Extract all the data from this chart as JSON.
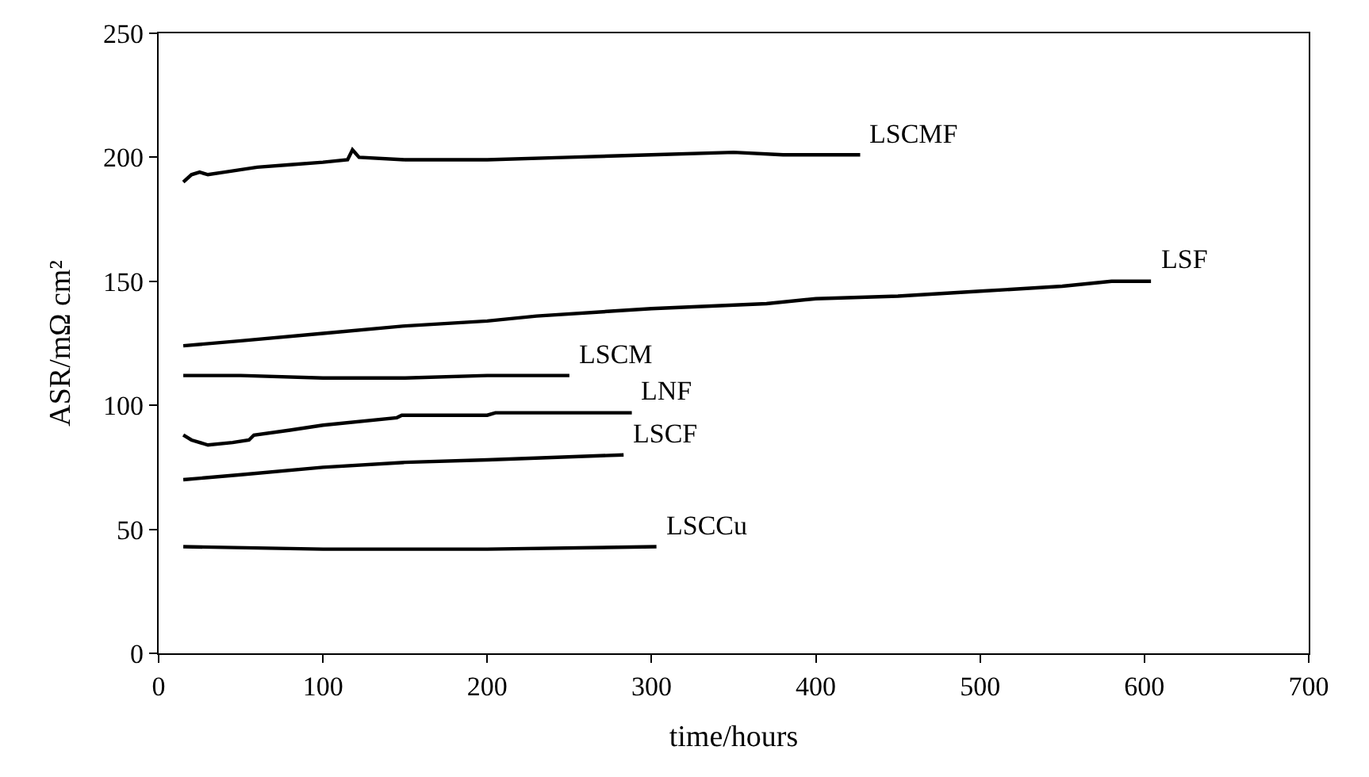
{
  "chart_data": {
    "type": "line",
    "xlabel": "time/hours",
    "ylabel": "ASR/mΩ cm²",
    "xlim": [
      0,
      700
    ],
    "ylim": [
      0,
      250
    ],
    "xticks": [
      0,
      100,
      200,
      300,
      400,
      500,
      600,
      700
    ],
    "yticks": [
      0,
      50,
      100,
      150,
      200,
      250
    ],
    "legend": false,
    "marker": "none",
    "line_style": "solid",
    "series": [
      {
        "name": "LSCMF",
        "color": "#000000",
        "x": [
          15,
          20,
          25,
          30,
          40,
          60,
          80,
          100,
          115,
          118,
          122,
          150,
          200,
          250,
          300,
          350,
          380,
          427
        ],
        "values": [
          190,
          193,
          194,
          193,
          194,
          196,
          197,
          198,
          199,
          203,
          200,
          199,
          199,
          200,
          201,
          202,
          201,
          201
        ]
      },
      {
        "name": "LSF",
        "color": "#000000",
        "x": [
          15,
          50,
          100,
          150,
          200,
          230,
          300,
          370,
          400,
          450,
          500,
          550,
          580,
          604
        ],
        "values": [
          124,
          126,
          129,
          132,
          134,
          136,
          139,
          141,
          143,
          144,
          146,
          148,
          150,
          150
        ]
      },
      {
        "name": "LSCM",
        "color": "#000000",
        "x": [
          15,
          50,
          100,
          150,
          200,
          250
        ],
        "values": [
          112,
          112,
          111,
          111,
          112,
          112
        ]
      },
      {
        "name": "LNF",
        "color": "#000000",
        "x": [
          15,
          20,
          30,
          45,
          55,
          58,
          80,
          100,
          145,
          148,
          200,
          205,
          288
        ],
        "values": [
          88,
          86,
          84,
          85,
          86,
          88,
          90,
          92,
          95,
          96,
          96,
          97,
          97
        ]
      },
      {
        "name": "LSCF",
        "color": "#000000",
        "x": [
          15,
          50,
          100,
          150,
          200,
          283
        ],
        "values": [
          70,
          72,
          75,
          77,
          78,
          80
        ]
      },
      {
        "name": "LSCCu",
        "color": "#000000",
        "x": [
          15,
          100,
          200,
          303
        ],
        "values": [
          43,
          42,
          42,
          43
        ]
      }
    ]
  }
}
